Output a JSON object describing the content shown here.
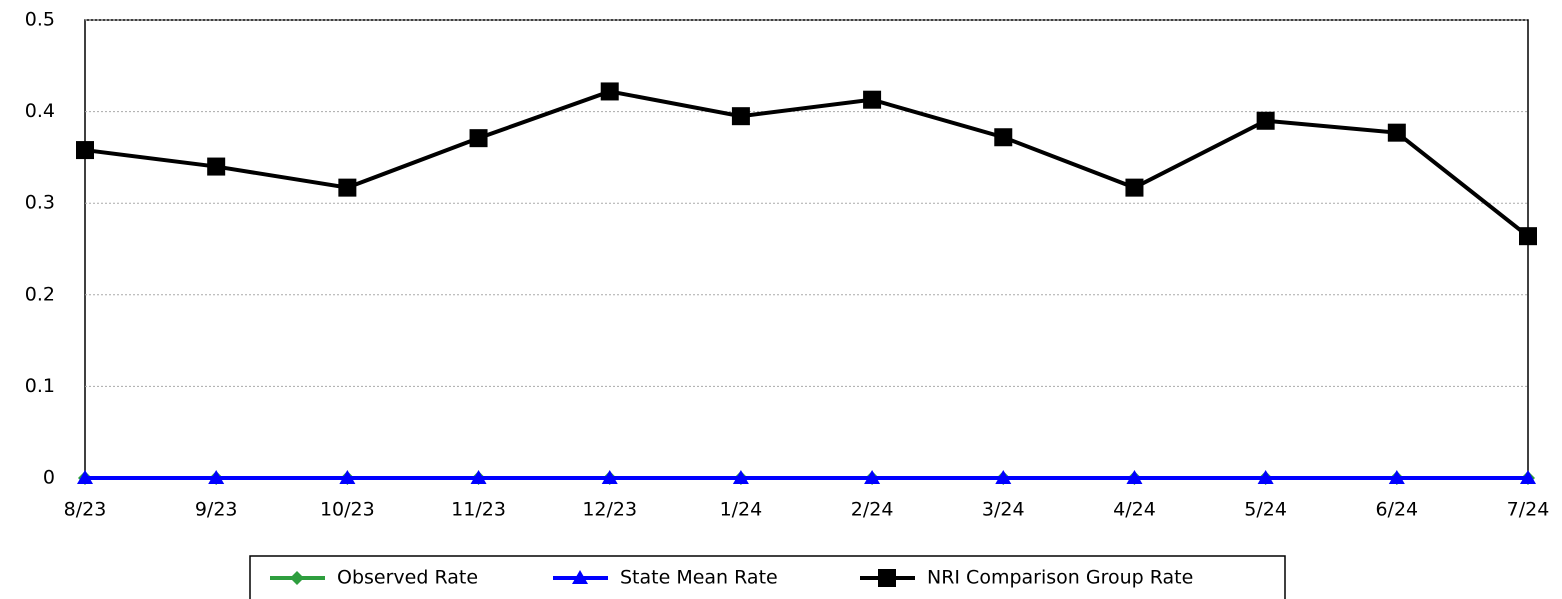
{
  "chart_data": {
    "type": "line",
    "categories": [
      "8/23",
      "9/23",
      "10/23",
      "11/23",
      "12/23",
      "1/24",
      "2/24",
      "3/24",
      "4/24",
      "5/24",
      "6/24",
      "7/24"
    ],
    "series": [
      {
        "name": "Observed Rate",
        "color": "#2e9e3e",
        "marker": "diamond",
        "values": [
          0,
          0,
          0,
          0,
          0,
          0,
          0,
          0,
          0,
          0,
          0,
          0
        ]
      },
      {
        "name": "State Mean Rate",
        "color": "#0000ff",
        "marker": "triangle",
        "values": [
          0,
          0,
          0,
          0,
          0,
          0,
          0,
          0,
          0,
          0,
          0,
          0
        ]
      },
      {
        "name": "NRI Comparison Group Rate",
        "color": "#000000",
        "marker": "square",
        "values": [
          0.358,
          0.34,
          0.317,
          0.371,
          0.422,
          0.395,
          0.413,
          0.372,
          0.317,
          0.39,
          0.377,
          0.264
        ]
      }
    ],
    "ylim": [
      0,
      0.5
    ],
    "yticks": [
      0,
      0.1,
      0.2,
      0.3,
      0.4,
      0.5
    ],
    "grid": true,
    "legend": "bottom"
  }
}
